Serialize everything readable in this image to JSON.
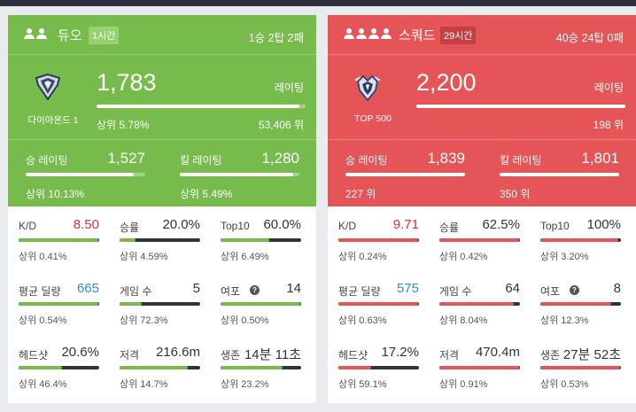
{
  "colors": {
    "duo_primary": "#76bb4c",
    "duo_badge": "#97cf71",
    "squad_primary": "#e55557",
    "squad_badge": "#c63f42",
    "stat_bar_track": "#2e3340",
    "kd_red": "#d9333a",
    "damage_blue": "#2f8cc6"
  },
  "duo": {
    "header": {
      "mode": "듀오",
      "time_badge": "1시간",
      "record": "1승 2탑 2패",
      "team_icon": "two-people-icon"
    },
    "rating": {
      "rank_icon": "diamond-rank-icon",
      "rank_name": "다이아몬드 1",
      "value": "1,783",
      "label": "레이팅",
      "top_pct": "상위 5.78%",
      "position": "53,406 위",
      "progress": 0.97
    },
    "win_rating": {
      "label": "승 레이팅",
      "value": "1,527",
      "rank": "상위 10.13%",
      "progress": 0.9
    },
    "kill_rating": {
      "label": "킬 레이팅",
      "value": "1,280",
      "rank": "상위 5.49%",
      "progress": 0.95
    },
    "stats": [
      {
        "label": "K/D",
        "value": "8.50",
        "rank": "상위 0.41%",
        "progress": 0.99
      },
      {
        "label": "승률",
        "value": "20.0%",
        "rank": "상위 4.59%",
        "progress": 0.2
      },
      {
        "label": "Top10",
        "value": "60.0%",
        "rank": "상위 6.49%",
        "progress": 0.6
      },
      {
        "label": "평균 딜량",
        "value": "665",
        "rank": "상위 0.54%",
        "progress": 0.99
      },
      {
        "label": "게임 수",
        "value": "5",
        "rank": "상위 72.3%",
        "progress": 0.28
      },
      {
        "label": "여포",
        "value": "14",
        "rank": "상위 0.50%",
        "progress": 0.99
      },
      {
        "label": "헤드샷",
        "value": "20.6%",
        "rank": "상위 46.4%",
        "progress": 0.54
      },
      {
        "label": "저격",
        "value": "216.6m",
        "rank": "상위 14.7%",
        "progress": 0.85
      },
      {
        "label": "생존",
        "value": "14분 11초",
        "rank": "상위 23.2%",
        "progress": 0.77
      }
    ]
  },
  "squad": {
    "header": {
      "mode": "스쿼드",
      "time_badge": "29시간",
      "record": "40승 24탑 0패",
      "team_icon": "four-people-icon"
    },
    "rating": {
      "rank_icon": "top500-rank-icon",
      "rank_name": "TOP 500",
      "value": "2,200",
      "label": "레이팅",
      "top_pct": "",
      "position": "198 위",
      "progress": 1.0
    },
    "win_rating": {
      "label": "승 레이팅",
      "value": "1,839",
      "rank": "227 위",
      "progress": 1.0
    },
    "kill_rating": {
      "label": "킬 레이팅",
      "value": "1,801",
      "rank": "350 위",
      "progress": 1.0
    },
    "stats": [
      {
        "label": "K/D",
        "value": "9.71",
        "rank": "상위 0.24%",
        "progress": 0.99
      },
      {
        "label": "승률",
        "value": "62.5%",
        "rank": "상위 0.42%",
        "progress": 0.99
      },
      {
        "label": "Top10",
        "value": "100%",
        "rank": "상위 3.20%",
        "progress": 0.97
      },
      {
        "label": "평균 딜량",
        "value": "575",
        "rank": "상위 0.63%",
        "progress": 0.99
      },
      {
        "label": "게임 수",
        "value": "64",
        "rank": "상위 8.04%",
        "progress": 0.92
      },
      {
        "label": "여포",
        "value": "8",
        "rank": "상위 12.3%",
        "progress": 0.88
      },
      {
        "label": "헤드샷",
        "value": "17.2%",
        "rank": "상위 59.1%",
        "progress": 0.41
      },
      {
        "label": "저격",
        "value": "470.4m",
        "rank": "상위 0.91%",
        "progress": 0.99
      },
      {
        "label": "생존",
        "value": "27분 52초",
        "rank": "상위 0.53%",
        "progress": 0.99
      }
    ]
  }
}
